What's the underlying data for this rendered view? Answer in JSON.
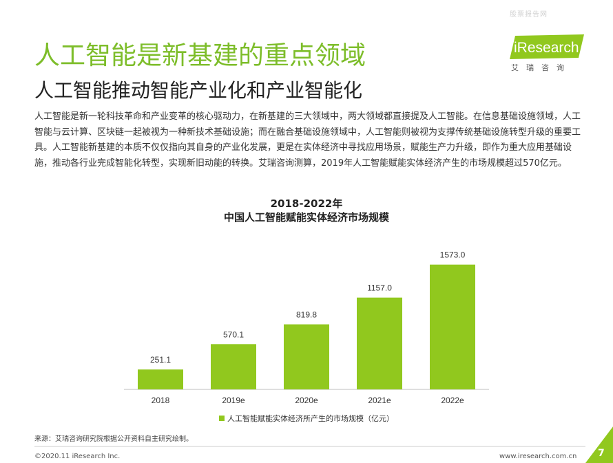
{
  "watermark": "股票报告网",
  "brand": {
    "logo_text": "iResearch",
    "logo_cn": "艾瑞咨询",
    "accent_color": "#7dbd2a",
    "bar_color": "#91c81e"
  },
  "header": {
    "title": "人工智能是新基建的重点领域",
    "subtitle": "人工智能推动智能产业化和产业智能化"
  },
  "body_text": "人工智能是新一轮科技革命和产业变革的核心驱动力，在新基建的三大领域中，两大领域都直接提及人工智能。在信息基础设施领域，人工智能与云计算、区块链一起被视为一种新技术基础设施；而在融合基础设施领域中，人工智能则被视为支撑传统基础设施转型升级的重要工具。人工智能新基建的本质不仅仅指向其自身的产业化发展，更是在实体经济中寻找应用场景，赋能生产力升级，即作为重大应用基础设施，推动各行业完成智能化转型，实现新旧动能的转换。艾瑞咨询测算，2019年人工智能赋能实体经济产生的市场规模超过570亿元。",
  "chart_data": {
    "type": "bar",
    "title": "2018-2022年",
    "subtitle": "中国人工智能赋能实体经济市场规模",
    "categories": [
      "2018",
      "2019e",
      "2020e",
      "2021e",
      "2022e"
    ],
    "series": [
      {
        "name": "人工智能赋能实体经济所产生的市场规模（亿元）",
        "values": [
          251.1,
          570.1,
          819.8,
          1157.0,
          1573.0
        ]
      }
    ],
    "value_labels": [
      "251.1",
      "570.1",
      "819.8",
      "1157.0",
      "1573.0"
    ],
    "ylim": [
      0,
      1700
    ],
    "grid": false,
    "legend_position": "bottom"
  },
  "footer": {
    "source": "来源：艾瑞咨询研究院根据公开资料自主研究绘制。",
    "copyright": "©2020.11 iResearch Inc.",
    "website": "www.iresearch.com.cn",
    "page_number": "7"
  }
}
